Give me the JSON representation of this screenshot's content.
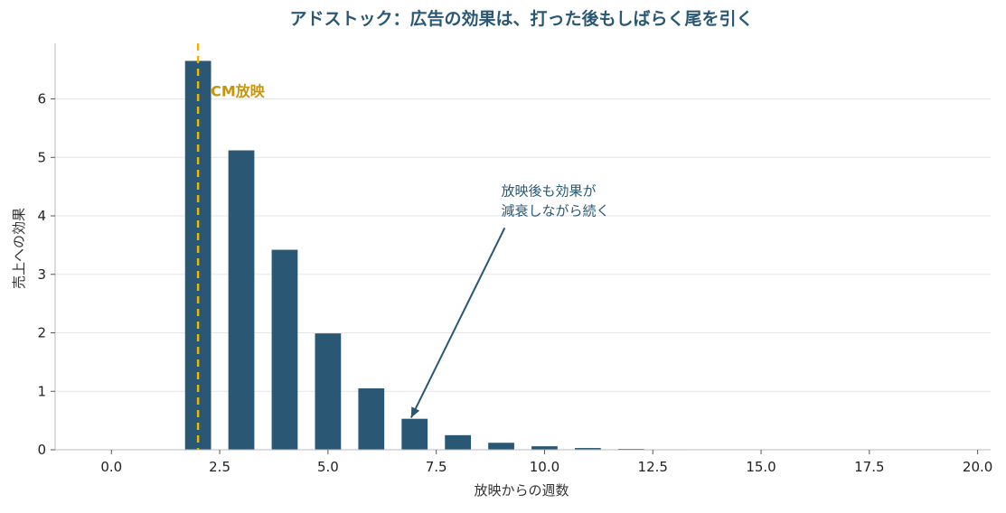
{
  "chart_data": {
    "type": "bar",
    "title": "アドストック：広告の効果は、打った後もしばらく尾を引く",
    "xlabel": "放映からの週数",
    "ylabel": "売上への効果",
    "xlim": [
      -1.3,
      20.3
    ],
    "ylim": [
      0,
      6.95
    ],
    "x_ticks": [
      0,
      2.5,
      5,
      7.5,
      10,
      12.5,
      15,
      17.5,
      20
    ],
    "x_tick_labels": [
      "0.0",
      "2.5",
      "5.0",
      "7.5",
      "10.0",
      "12.5",
      "15.0",
      "17.5",
      "20.0"
    ],
    "y_ticks": [
      0,
      1,
      2,
      3,
      4,
      5,
      6
    ],
    "y_tick_labels": [
      "0",
      "1",
      "2",
      "3",
      "4",
      "5",
      "6"
    ],
    "grid": "horizontal",
    "bar_width": 0.6,
    "x": [
      2,
      3,
      4,
      5,
      6,
      7,
      8,
      9,
      10,
      11,
      12,
      13
    ],
    "values": [
      6.65,
      5.12,
      3.42,
      1.99,
      1.05,
      0.53,
      0.25,
      0.12,
      0.06,
      0.03,
      0.015,
      0.008
    ],
    "bar_color": "#2a5773",
    "marker": {
      "x": 2,
      "label": "CM放映",
      "color": "#f0b400"
    },
    "annotation": {
      "lines": [
        "放映後も効果が",
        "減衰しながら続く"
      ],
      "text_at": [
        9,
        4.35
      ],
      "arrow_to": [
        7,
        0.55
      ],
      "color": "#2a5773"
    }
  }
}
